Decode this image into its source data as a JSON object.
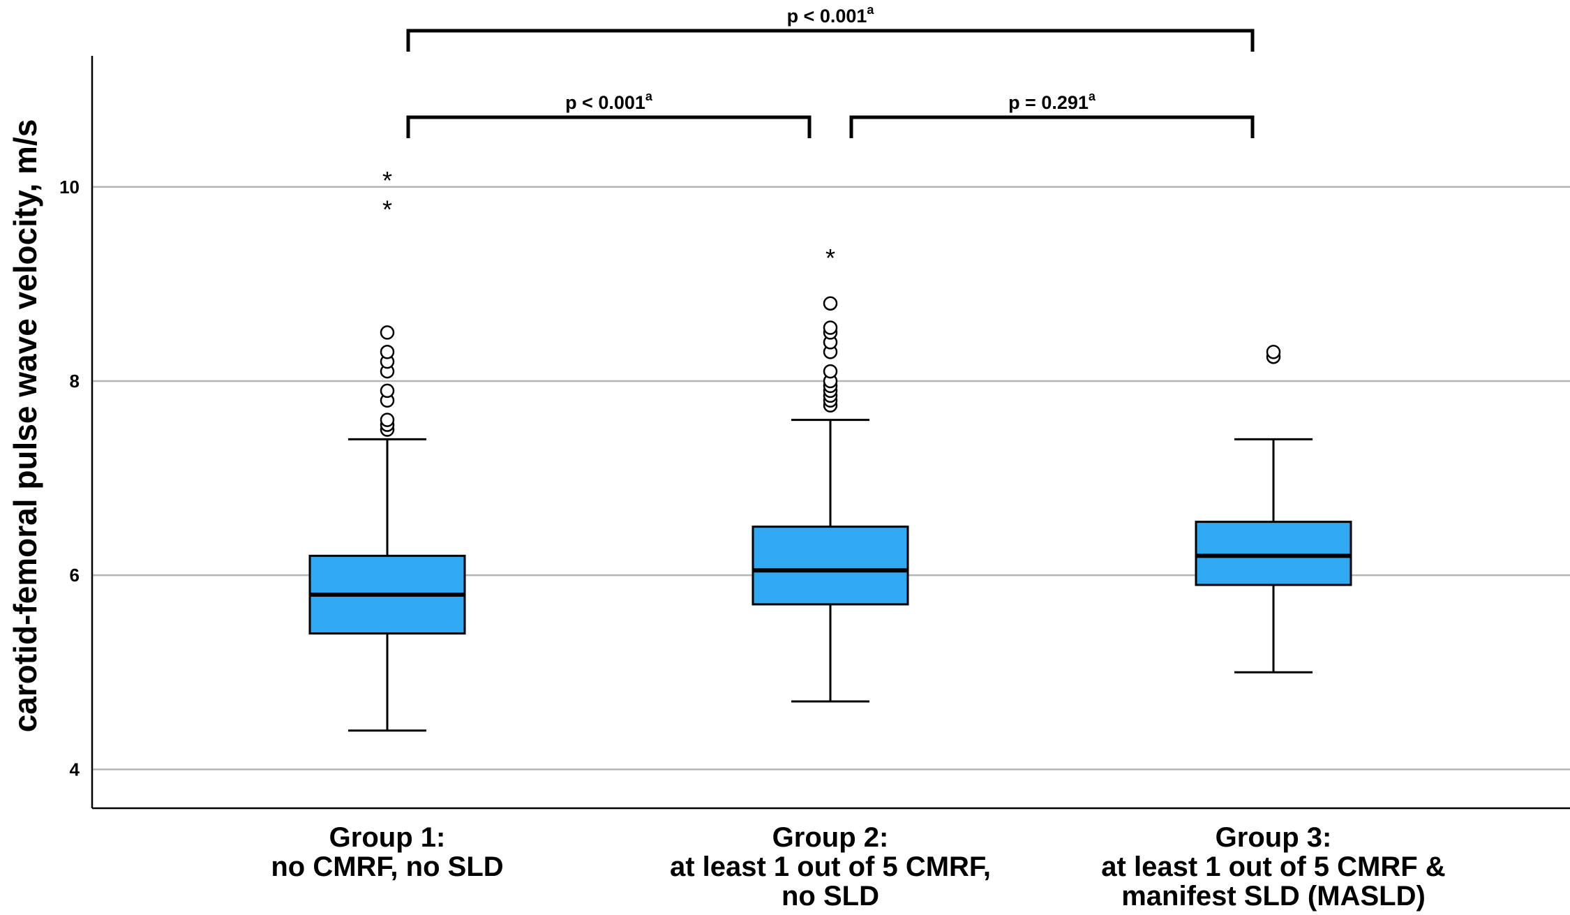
{
  "chart_data": {
    "type": "box",
    "ylabel": "carotid-femoral pulse wave velocity, m/s",
    "ylim": [
      3.6,
      11.35
    ],
    "yticks": [
      4,
      6,
      8,
      10
    ],
    "grid": true,
    "colors": {
      "box": "#31a9f2",
      "grid": "#b4b4b4"
    },
    "groups": [
      {
        "label_lines": [
          "Group 1:",
          "no CMRF, no SLD"
        ],
        "whisker_low": 4.4,
        "q1": 5.4,
        "median": 5.8,
        "q3": 6.2,
        "whisker_high": 7.4,
        "outliers_circle": [
          7.5,
          7.55,
          7.6,
          7.8,
          7.9,
          8.1,
          8.2,
          8.3,
          8.5
        ],
        "outliers_extreme": [
          9.8,
          10.1
        ]
      },
      {
        "label_lines": [
          "Group 2:",
          "at least 1 out of 5 CMRF,",
          "no SLD"
        ],
        "whisker_low": 4.7,
        "q1": 5.7,
        "median": 6.05,
        "q3": 6.5,
        "whisker_high": 7.6,
        "outliers_circle": [
          7.75,
          7.8,
          7.85,
          7.9,
          7.95,
          8.0,
          8.1,
          8.3,
          8.4,
          8.5,
          8.55,
          8.8
        ],
        "outliers_extreme": [
          9.3
        ]
      },
      {
        "label_lines": [
          "Group 3:",
          "at least 1 out of 5 CMRF &",
          "manifest SLD (MASLD)"
        ],
        "whisker_low": 5.0,
        "q1": 5.9,
        "median": 6.2,
        "q3": 6.55,
        "whisker_high": 7.4,
        "outliers_circle": [
          8.25,
          8.3
        ],
        "outliers_extreme": []
      }
    ],
    "comparisons": [
      {
        "from": 0,
        "to": 1,
        "label": "p < 0.001",
        "sup": "a",
        "level": 0
      },
      {
        "from": 1,
        "to": 2,
        "label": "p = 0.291",
        "sup": "a",
        "level": 0
      },
      {
        "from": 0,
        "to": 2,
        "label": "p < 0.001",
        "sup": "a",
        "level": 1
      }
    ]
  }
}
